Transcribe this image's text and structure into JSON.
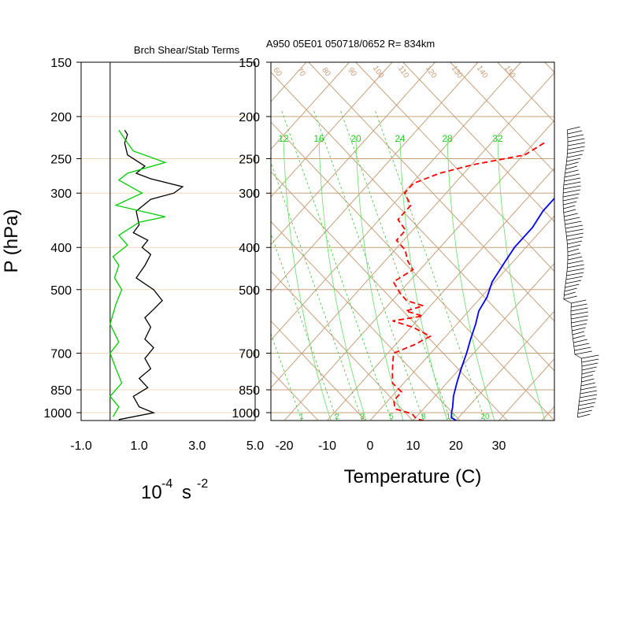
{
  "chart_data": [
    {
      "type": "line",
      "title": "Brch Shear/Stab Terms",
      "ylabel": "P (hPa)",
      "xlabel_base": "10",
      "xlabel_exp": "-4",
      "xlabel_unit": "s",
      "xlabel_unit_exp": "-2",
      "xlim": [
        -1.0,
        5.0
      ],
      "x_ticks": [
        "-1.0",
        "1.0",
        "3.0",
        "5.0"
      ],
      "ylim": [
        1000,
        150
      ],
      "y_scale": "log",
      "y_ticks": [
        "150",
        "200",
        "250",
        "300",
        "400",
        "500",
        "700",
        "850",
        "1000"
      ],
      "zero_line": 0,
      "series": [
        {
          "color": "#000000",
          "points": [
            [
              0.5,
              215
            ],
            [
              0.6,
              220
            ],
            [
              0.5,
              230
            ],
            [
              0.6,
              245
            ],
            [
              1.2,
              260
            ],
            [
              0.9,
              270
            ],
            [
              1.4,
              278
            ],
            [
              2.5,
              290
            ],
            [
              2.2,
              300
            ],
            [
              1.4,
              310
            ],
            [
              0.9,
              330
            ],
            [
              1.0,
              355
            ],
            [
              0.8,
              370
            ],
            [
              1.3,
              385
            ],
            [
              1.1,
              400
            ],
            [
              1.4,
              415
            ],
            [
              1.2,
              440
            ],
            [
              0.9,
              470
            ],
            [
              1.5,
              500
            ],
            [
              1.8,
              530
            ],
            [
              1.5,
              555
            ],
            [
              1.2,
              580
            ],
            [
              1.4,
              610
            ],
            [
              1.2,
              650
            ],
            [
              1.5,
              680
            ],
            [
              1.2,
              720
            ],
            [
              1.4,
              760
            ],
            [
              1.0,
              800
            ],
            [
              1.3,
              840
            ],
            [
              0.8,
              880
            ],
            [
              1.0,
              930
            ],
            [
              1.5,
              960
            ],
            [
              0.3,
              995
            ]
          ]
        },
        {
          "color": "#00cc00",
          "points": [
            [
              0.3,
              215
            ],
            [
              0.6,
              230
            ],
            [
              0.8,
              240
            ],
            [
              1.9,
              255
            ],
            [
              0.6,
              270
            ],
            [
              0.3,
              280
            ],
            [
              1.1,
              300
            ],
            [
              0.2,
              320
            ],
            [
              1.9,
              340
            ],
            [
              1.0,
              350
            ],
            [
              0.3,
              375
            ],
            [
              0.6,
              395
            ],
            [
              0.1,
              420
            ],
            [
              0.3,
              440
            ],
            [
              0.15,
              470
            ],
            [
              0.4,
              500
            ],
            [
              0.2,
              540
            ],
            [
              0.0,
              600
            ],
            [
              0.3,
              660
            ],
            [
              0.0,
              700
            ],
            [
              0.2,
              760
            ],
            [
              0.4,
              820
            ],
            [
              0.0,
              880
            ],
            [
              0.3,
              930
            ],
            [
              0.1,
              980
            ]
          ]
        }
      ]
    },
    {
      "type": "line",
      "title": "A950 05E01 050718/0652 R= 834km",
      "xlabel": "Temperature (C)",
      "xlim": [
        -20,
        40
      ],
      "x_ticks": [
        "-20",
        "-10",
        "0",
        "10",
        "20",
        "30"
      ],
      "ylim": [
        1000,
        150
      ],
      "y_scale": "log",
      "y_ticks": [
        "150",
        "200",
        "250",
        "300",
        "400",
        "500",
        "700",
        "850",
        "1000"
      ],
      "mixing_ratio_labels": [
        "1",
        "2",
        "3",
        "5",
        "8",
        "12",
        "20"
      ],
      "upper_labels": [
        "12",
        "16",
        "20",
        "24",
        "28",
        "32"
      ],
      "theta_labels": [
        "60",
        "70",
        "80",
        "90",
        "100",
        "110",
        "120",
        "130",
        "140",
        "150"
      ],
      "series": [
        {
          "color": "#0000ff",
          "style": "solid",
          "points": [
            [
              -4,
              205
            ],
            [
              -2,
              230
            ],
            [
              0,
              255
            ],
            [
              0,
              275
            ],
            [
              -2,
              300
            ],
            [
              -2,
              330
            ],
            [
              -1,
              360
            ],
            [
              -1,
              400
            ],
            [
              0,
              440
            ],
            [
              1,
              480
            ],
            [
              3,
              520
            ],
            [
              4,
              560
            ],
            [
              6,
              600
            ],
            [
              8,
              650
            ],
            [
              10,
              700
            ],
            [
              12,
              760
            ],
            [
              14,
              820
            ],
            [
              16,
              880
            ],
            [
              18,
              930
            ],
            [
              19,
              960
            ],
            [
              20,
              985
            ],
            [
              22,
              1003
            ]
          ]
        },
        {
          "color": "#ff0000",
          "style": "dashed",
          "points": [
            [
              -16,
              230
            ],
            [
              -18,
              245
            ],
            [
              -28,
              258
            ],
            [
              -34,
              270
            ],
            [
              -38,
              285
            ],
            [
              -38,
              300
            ],
            [
              -34,
              320
            ],
            [
              -34,
              345
            ],
            [
              -30,
              365
            ],
            [
              -30,
              385
            ],
            [
              -26,
              405
            ],
            [
              -23,
              430
            ],
            [
              -20,
              450
            ],
            [
              -22,
              480
            ],
            [
              -18,
              510
            ],
            [
              -15,
              530
            ],
            [
              -10,
              545
            ],
            [
              -13,
              560
            ],
            [
              -8,
              575
            ],
            [
              -14,
              590
            ],
            [
              -8,
              610
            ],
            [
              -2,
              640
            ],
            [
              -4,
              670
            ],
            [
              -7,
              700
            ],
            [
              -5,
              740
            ],
            [
              -3,
              780
            ],
            [
              -1,
              820
            ],
            [
              3,
              860
            ],
            [
              3,
              900
            ],
            [
              5,
              940
            ],
            [
              10,
              965
            ],
            [
              12,
              990
            ],
            [
              14,
              1000
            ]
          ]
        }
      ]
    }
  ],
  "wind_barbs": "present"
}
